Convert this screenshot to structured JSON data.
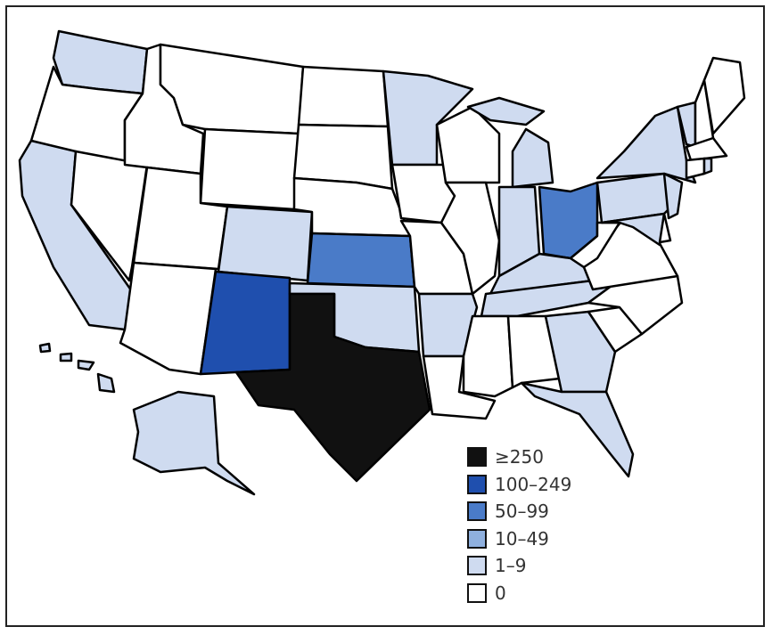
{
  "colors": {
    "ge250": "#111111",
    "100-249": "#1f4fae",
    "50-99": "#4a7bc8",
    "10-49": "#8fb0de",
    "1-9": "#cfdbf0",
    "0": "#ffffff"
  },
  "legend": [
    {
      "key": "ge250",
      "label": "≥250"
    },
    {
      "key": "100-249",
      "label": "100–249"
    },
    {
      "key": "50-99",
      "label": "50–99"
    },
    {
      "key": "10-49",
      "label": "10–49"
    },
    {
      "key": "1-9",
      "label": "1–9"
    },
    {
      "key": "0",
      "label": "0"
    }
  ],
  "states": {
    "WA": "1-9",
    "OR": "0",
    "CA": "1-9",
    "NV": "0",
    "ID": "0",
    "MT": "0",
    "WY": "0",
    "UT": "0",
    "AZ": "0",
    "CO": "1-9",
    "NM": "100-249",
    "ND": "0",
    "SD": "0",
    "NE": "0",
    "KS": "50-99",
    "OK": "1-9",
    "TX": "ge250",
    "MN": "1-9",
    "IA": "0",
    "MO": "0",
    "AR": "1-9",
    "LA": "0",
    "WI": "0",
    "IL": "0",
    "MI": "1-9",
    "IN": "1-9",
    "OH": "50-99",
    "KY": "1-9",
    "TN": "1-9",
    "MS": "0",
    "AL": "0",
    "GA": "1-9",
    "FL": "1-9",
    "SC": "0",
    "NC": "0",
    "VA": "0",
    "WV": "0",
    "MD": "1-9",
    "DE": "0",
    "NJ": "1-9",
    "PA": "1-9",
    "NY": "1-9",
    "CT": "0",
    "RI": "1-9",
    "MA": "0",
    "VT": "1-9",
    "NH": "0",
    "ME": "0",
    "AK": "1-9",
    "HI": "1-9"
  }
}
